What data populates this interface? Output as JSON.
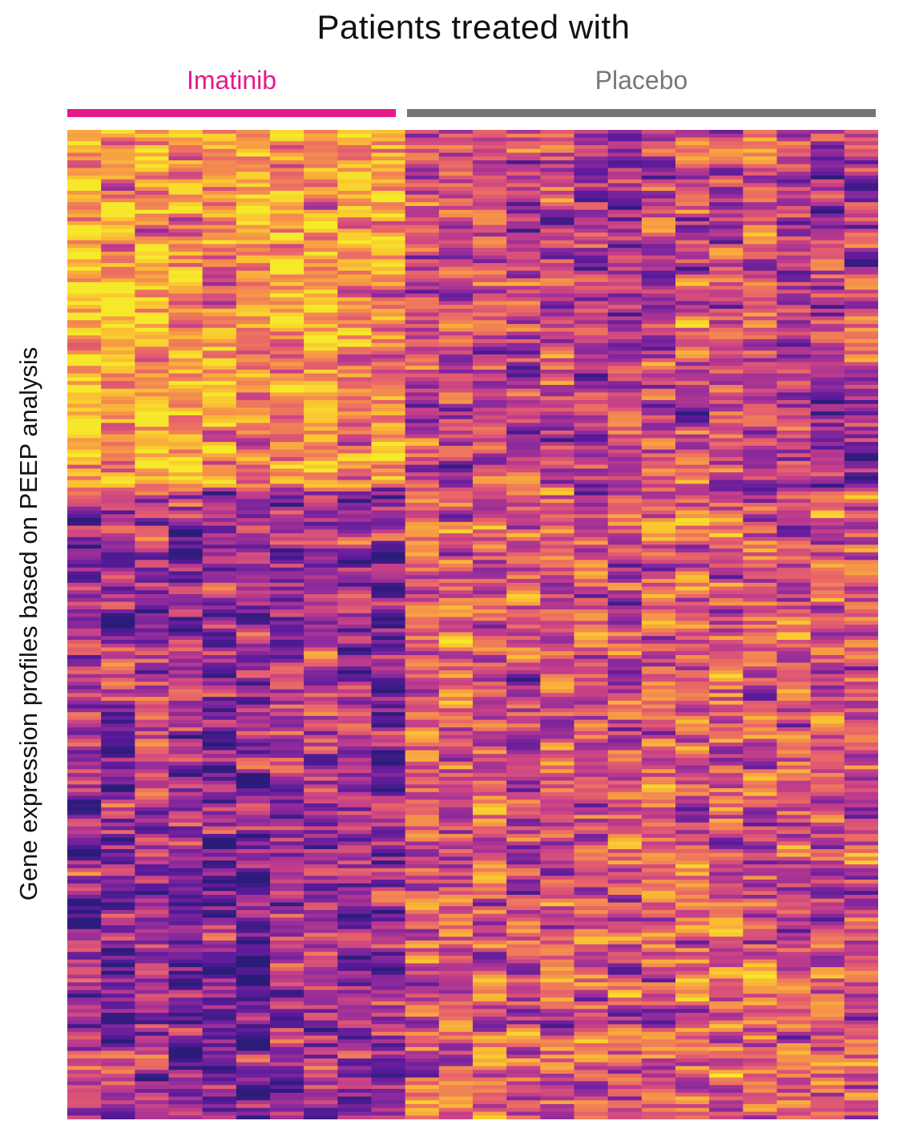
{
  "chart_data": {
    "type": "heatmap",
    "title": "Patients treated with",
    "ylabel": "Gene expression profiles based on PEEP analysis",
    "xlabel": "",
    "groups": [
      {
        "name": "Imatinib",
        "color": "#e6198a",
        "columns": 10
      },
      {
        "name": "Placebo",
        "color": "#757575",
        "columns": 14
      }
    ],
    "rows": 260,
    "colormap": [
      "#2c1c7a",
      "#5a1a9a",
      "#8c2a9c",
      "#c43e8a",
      "#e8636a",
      "#f5924a",
      "#fbc032",
      "#f6e92a"
    ],
    "row_blocks": [
      {
        "row_range": [
          0,
          93
        ],
        "imatinib_level": 0.74,
        "placebo_level": 0.42
      },
      {
        "row_range": [
          94,
          259
        ],
        "imatinib_level": 0.32,
        "placebo_level": 0.52
      }
    ]
  }
}
